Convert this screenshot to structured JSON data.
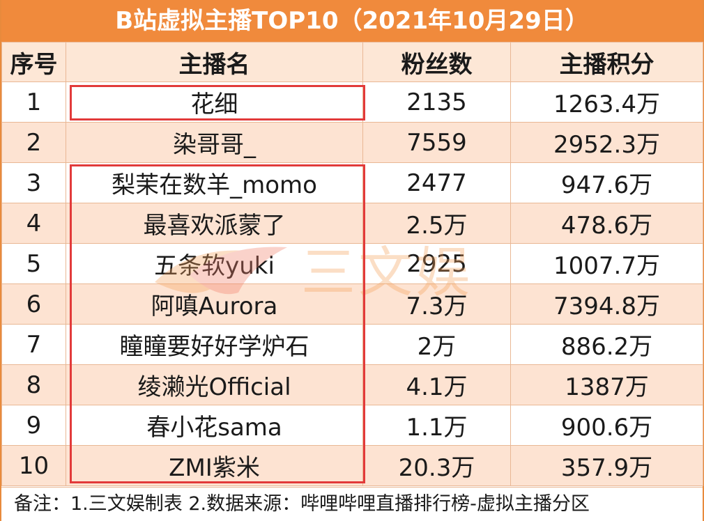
{
  "title": "B站虚拟主播TOP10（2021年10月29日）",
  "columns": [
    "序号",
    "主播名",
    "粉丝数",
    "主播积分"
  ],
  "rows": [
    {
      "rank": "1",
      "name": "花细",
      "fans": "2135",
      "score": "1263.4万"
    },
    {
      "rank": "2",
      "name": "染哥哥_",
      "fans": "7559",
      "score": "2952.3万"
    },
    {
      "rank": "3",
      "name": "梨茉在数羊_momo",
      "fans": "2477",
      "score": "947.6万"
    },
    {
      "rank": "4",
      "name": "最喜欢派蒙了",
      "fans": "2.5万",
      "score": "478.6万"
    },
    {
      "rank": "5",
      "name": "五条软yuki",
      "fans": "2925",
      "score": "1007.7万"
    },
    {
      "rank": "6",
      "name": "阿嗔Aurora",
      "fans": "7.3万",
      "score": "7394.8万"
    },
    {
      "rank": "7",
      "name": "瞳瞳要好好学炉石",
      "fans": "2万",
      "score": "886.2万"
    },
    {
      "rank": "8",
      "name": "绫濑光Official",
      "fans": "4.1万",
      "score": "1387万"
    },
    {
      "rank": "9",
      "name": "春小花sama",
      "fans": "1.1万",
      "score": "900.6万"
    },
    {
      "rank": "10",
      "name": "ZMI紫米",
      "fans": "20.3万",
      "score": "357.9万"
    }
  ],
  "note": "备注：1.三文娱制表 2.数据来源：哔哩哔哩直播排行榜-虚拟主播分区",
  "watermark": "三文娱",
  "colors": {
    "header_bar": "#f08a3c",
    "stripe": "#fde3d2",
    "highlight_box": "#e23a3a"
  }
}
